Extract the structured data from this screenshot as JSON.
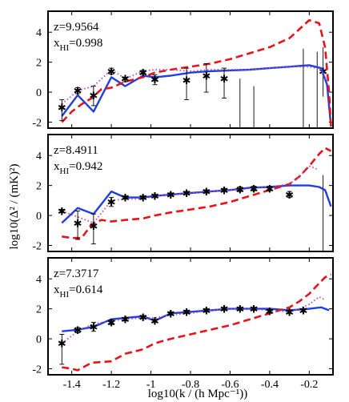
{
  "figure": {
    "ylabel": "log10(Δ² / (mK)²)",
    "xlabel": "log10(k / (h Mpc⁻¹))"
  },
  "chart_data": [
    {
      "type": "line",
      "panel": "top",
      "annotation": {
        "z": "z=9.9564",
        "xhi": "x",
        "xhi_sub": "HI",
        "xhi_val": "=0.998"
      },
      "xlim": [
        -1.52,
        -0.08
      ],
      "ylim": [
        -2.4,
        5.4
      ],
      "yticks": [
        -2,
        0,
        2,
        4
      ],
      "xticks": [
        -1.4,
        -1.2,
        -1,
        -0.8,
        -0.6,
        -0.4,
        -0.2
      ],
      "series": [
        {
          "style": "blue-solid",
          "color": "#1f3fe0",
          "x": [
            -1.45,
            -1.37,
            -1.29,
            -1.2,
            -1.13,
            -1.04,
            -0.98,
            -0.9,
            -0.8,
            -0.7,
            -0.6,
            -0.5,
            -0.4,
            -0.3,
            -0.2,
            -0.14,
            -0.11,
            -0.09
          ],
          "y": [
            -1.6,
            -0.2,
            -1.3,
            1.0,
            0.4,
            1.1,
            1.0,
            1.1,
            1.3,
            1.4,
            1.45,
            1.5,
            1.6,
            1.7,
            1.8,
            1.6,
            0.5,
            -2.3
          ]
        },
        {
          "style": "red-dashed",
          "color": "#e8121b",
          "x": [
            -1.45,
            -1.4,
            -1.35,
            -1.3,
            -1.25,
            -1.2,
            -1.13,
            -1.04,
            -0.98,
            -0.9,
            -0.8,
            -0.7,
            -0.6,
            -0.5,
            -0.4,
            -0.3,
            -0.25,
            -0.2,
            -0.15,
            -0.12,
            -0.1,
            -0.09
          ],
          "y": [
            -2.0,
            -1.3,
            -0.8,
            -0.4,
            0.2,
            0.3,
            0.7,
            1.0,
            1.3,
            1.5,
            1.7,
            1.9,
            2.2,
            2.6,
            3.0,
            3.6,
            4.2,
            4.8,
            4.6,
            3.0,
            0.0,
            -2.3
          ]
        },
        {
          "style": "magenta-dotted",
          "color": "#b04ab0",
          "x": [
            -1.45,
            -1.37,
            -1.29,
            -1.2,
            -1.13,
            -1.04,
            -0.98,
            -0.9,
            -0.8,
            -0.7,
            -0.6,
            -0.5,
            -0.4,
            -0.3,
            -0.2,
            -0.14,
            -0.11
          ],
          "y": [
            -0.8,
            0.1,
            0.4,
            1.5,
            0.9,
            1.4,
            1.5,
            1.5,
            1.4,
            1.5,
            1.5,
            1.5,
            1.6,
            1.7,
            1.7,
            1.5,
            0.7
          ]
        }
      ],
      "points": [
        {
          "x": -1.45,
          "y": -1.0,
          "lo": -1.9,
          "hi": -0.5
        },
        {
          "x": -1.37,
          "y": 0.1,
          "lo": -0.1,
          "hi": 0.3
        },
        {
          "x": -1.29,
          "y": -0.2,
          "lo": -0.9,
          "hi": 0.4
        },
        {
          "x": -1.2,
          "y": 1.4,
          "lo": 1.2,
          "hi": 1.6
        },
        {
          "x": -1.13,
          "y": 0.9,
          "lo": 0.7,
          "hi": 1.0
        },
        {
          "x": -1.04,
          "y": 1.3,
          "lo": 1.2,
          "hi": 1.45
        },
        {
          "x": -0.98,
          "y": 0.85,
          "lo": 0.5,
          "hi": 1.15
        },
        {
          "x": -0.82,
          "y": 0.8,
          "lo": -0.5,
          "hi": 1.6
        },
        {
          "x": -0.72,
          "y": 1.1,
          "lo": 0.0,
          "hi": 1.9
        },
        {
          "x": -0.63,
          "y": 0.9,
          "lo": -0.4,
          "hi": 1.6
        }
      ],
      "bars": [
        {
          "x": -0.55,
          "lo": -2.4,
          "hi": 0.9
        },
        {
          "x": -0.48,
          "lo": -2.4,
          "hi": 0.4
        },
        {
          "x": -0.23,
          "lo": -2.4,
          "hi": 2.9
        },
        {
          "x": -0.16,
          "lo": -2.4,
          "hi": 2.7
        },
        {
          "x": -0.13,
          "lo": -0.3,
          "hi": 3.0,
          "marker": 1.4
        }
      ]
    },
    {
      "type": "line",
      "panel": "middle",
      "annotation": {
        "z": "z=8.4911",
        "xhi": "x",
        "xhi_sub": "HI",
        "xhi_val": "=0.942"
      },
      "xlim": [
        -1.52,
        -0.08
      ],
      "ylim": [
        -2.4,
        5.4
      ],
      "yticks": [
        -2,
        0,
        2,
        4
      ],
      "xticks": [
        -1.4,
        -1.2,
        -1,
        -0.8,
        -0.6,
        -0.4,
        -0.2
      ],
      "series": [
        {
          "style": "blue-solid",
          "color": "#1f3fe0",
          "x": [
            -1.45,
            -1.37,
            -1.29,
            -1.2,
            -1.13,
            -1.04,
            -0.98,
            -0.9,
            -0.8,
            -0.7,
            -0.6,
            -0.5,
            -0.4,
            -0.3,
            -0.2,
            -0.15,
            -0.12,
            -0.09
          ],
          "y": [
            -0.5,
            0.5,
            0.1,
            1.6,
            1.2,
            1.2,
            1.3,
            1.4,
            1.5,
            1.6,
            1.7,
            1.85,
            1.9,
            2.0,
            2.0,
            1.9,
            1.7,
            0.6
          ]
        },
        {
          "style": "red-dashed",
          "color": "#e8121b",
          "x": [
            -1.45,
            -1.4,
            -1.35,
            -1.3,
            -1.25,
            -1.2,
            -1.13,
            -1.04,
            -0.98,
            -0.9,
            -0.8,
            -0.7,
            -0.6,
            -0.5,
            -0.4,
            -0.3,
            -0.25,
            -0.2,
            -0.15,
            -0.12,
            -0.09
          ],
          "y": [
            -1.4,
            -1.5,
            -1.5,
            -0.6,
            -0.3,
            -0.4,
            -0.3,
            -0.2,
            0.0,
            0.2,
            0.4,
            0.6,
            0.9,
            1.3,
            1.7,
            2.1,
            2.6,
            3.3,
            4.1,
            4.5,
            4.3
          ]
        },
        {
          "style": "magenta-dotted",
          "color": "#b04ab0",
          "x": [
            -1.45,
            -1.37,
            -1.29,
            -1.2,
            -1.13,
            -1.04,
            -0.98,
            -0.9,
            -0.8,
            -0.7,
            -0.6,
            -0.5,
            -0.4,
            -0.3,
            -0.25,
            -0.2,
            -0.16
          ],
          "y": [
            0.3,
            -0.1,
            -0.5,
            1.0,
            1.1,
            1.1,
            1.3,
            1.4,
            1.5,
            1.6,
            1.7,
            1.8,
            1.9,
            2.1,
            2.6,
            3.3,
            3.1
          ]
        }
      ],
      "points": [
        {
          "x": -1.45,
          "y": 0.3,
          "lo": 0.2,
          "hi": 0.4
        },
        {
          "x": -1.37,
          "y": -0.5,
          "lo": -1.6,
          "hi": 0.3
        },
        {
          "x": -1.29,
          "y": -0.7,
          "lo": -1.9,
          "hi": 0.1
        },
        {
          "x": -1.2,
          "y": 0.9,
          "lo": 0.6,
          "hi": 1.2
        },
        {
          "x": -1.13,
          "y": 1.2,
          "lo": 1.1,
          "hi": 1.3
        },
        {
          "x": -1.04,
          "y": 1.2,
          "lo": 1.15,
          "hi": 1.3
        },
        {
          "x": -0.98,
          "y": 1.3,
          "lo": 1.2,
          "hi": 1.4
        },
        {
          "x": -0.9,
          "y": 1.4,
          "lo": 1.3,
          "hi": 1.5
        },
        {
          "x": -0.82,
          "y": 1.5,
          "lo": 1.4,
          "hi": 1.6
        },
        {
          "x": -0.72,
          "y": 1.6,
          "lo": 1.5,
          "hi": 1.7
        },
        {
          "x": -0.63,
          "y": 1.7,
          "lo": 1.6,
          "hi": 1.8
        },
        {
          "x": -0.55,
          "y": 1.75,
          "lo": 1.6,
          "hi": 1.9
        },
        {
          "x": -0.48,
          "y": 1.8,
          "lo": 1.65,
          "hi": 1.95
        },
        {
          "x": -0.4,
          "y": 1.8,
          "lo": 1.65,
          "hi": 1.95
        },
        {
          "x": -0.3,
          "y": 1.4,
          "lo": 1.2,
          "hi": 1.6
        }
      ],
      "bars": [
        {
          "x": -0.13,
          "lo": -2.4,
          "hi": 2.7
        }
      ]
    },
    {
      "type": "line",
      "panel": "bottom",
      "annotation": {
        "z": "z=7.3717",
        "xhi": "x",
        "xhi_sub": "HI",
        "xhi_val": "=0.614"
      },
      "xlim": [
        -1.52,
        -0.08
      ],
      "ylim": [
        -2.4,
        5.4
      ],
      "yticks": [
        -2,
        0,
        2,
        4
      ],
      "xticks": [
        -1.4,
        -1.2,
        -1,
        -0.8,
        -0.6,
        -0.4,
        -0.2
      ],
      "xticklabels": [
        "-1.4",
        "-1.2",
        "-1",
        "-0.8",
        "-0.6",
        "-0.4",
        "-0.2"
      ],
      "series": [
        {
          "style": "blue-solid",
          "color": "#1f3fe0",
          "x": [
            -1.45,
            -1.37,
            -1.29,
            -1.2,
            -1.13,
            -1.04,
            -0.98,
            -0.9,
            -0.8,
            -0.7,
            -0.6,
            -0.5,
            -0.4,
            -0.3,
            -0.2,
            -0.14,
            -0.1
          ],
          "y": [
            0.5,
            0.6,
            0.8,
            1.3,
            1.4,
            1.5,
            1.2,
            1.7,
            1.8,
            1.9,
            2.0,
            2.0,
            2.0,
            1.9,
            2.0,
            2.1,
            1.9
          ]
        },
        {
          "style": "red-dashed",
          "color": "#e8121b",
          "x": [
            -1.45,
            -1.4,
            -1.37,
            -1.3,
            -1.2,
            -1.13,
            -1.04,
            -0.98,
            -0.9,
            -0.8,
            -0.7,
            -0.6,
            -0.5,
            -0.4,
            -0.3,
            -0.25,
            -0.2,
            -0.15,
            -0.12,
            -0.09
          ],
          "y": [
            -1.9,
            -2.0,
            -2.1,
            -1.6,
            -1.5,
            -1.0,
            -0.7,
            -0.3,
            0.0,
            0.3,
            0.6,
            0.9,
            1.3,
            1.7,
            2.1,
            2.5,
            3.0,
            3.7,
            4.1,
            4.3
          ]
        },
        {
          "style": "magenta-dotted",
          "color": "#b04ab0",
          "x": [
            -1.45,
            -1.37,
            -1.29,
            -1.2,
            -1.13,
            -1.04,
            -0.98,
            -0.9,
            -0.8,
            -0.7,
            -0.6,
            -0.5,
            -0.4,
            -0.3,
            -0.25,
            -0.2,
            -0.15,
            -0.12
          ],
          "y": [
            -0.3,
            0.5,
            1.0,
            1.2,
            1.3,
            1.4,
            1.4,
            1.6,
            1.7,
            1.9,
            2.0,
            2.0,
            1.9,
            1.8,
            2.0,
            2.3,
            2.8,
            2.6
          ]
        }
      ],
      "points": [
        {
          "x": -1.45,
          "y": -0.3,
          "lo": -1.7,
          "hi": 0.3
        },
        {
          "x": -1.37,
          "y": 0.6,
          "lo": 0.4,
          "hi": 0.75
        },
        {
          "x": -1.29,
          "y": 0.8,
          "lo": 0.5,
          "hi": 1.1
        },
        {
          "x": -1.2,
          "y": 1.1,
          "lo": 0.95,
          "hi": 1.25
        },
        {
          "x": -1.13,
          "y": 1.3,
          "lo": 1.2,
          "hi": 1.4
        },
        {
          "x": -1.04,
          "y": 1.45,
          "lo": 1.35,
          "hi": 1.55
        },
        {
          "x": -0.98,
          "y": 1.2,
          "lo": 1.1,
          "hi": 1.3
        },
        {
          "x": -0.9,
          "y": 1.7,
          "lo": 1.6,
          "hi": 1.8
        },
        {
          "x": -0.82,
          "y": 1.8,
          "lo": 1.7,
          "hi": 1.9
        },
        {
          "x": -0.72,
          "y": 1.9,
          "lo": 1.8,
          "hi": 2.0
        },
        {
          "x": -0.63,
          "y": 2.0,
          "lo": 1.9,
          "hi": 2.1
        },
        {
          "x": -0.55,
          "y": 2.0,
          "lo": 1.9,
          "hi": 2.1
        },
        {
          "x": -0.48,
          "y": 2.0,
          "lo": 1.9,
          "hi": 2.1
        },
        {
          "x": -0.4,
          "y": 1.85,
          "lo": 1.75,
          "hi": 1.95
        },
        {
          "x": -0.3,
          "y": 1.8,
          "lo": 1.7,
          "hi": 1.9
        },
        {
          "x": -0.23,
          "y": 1.9,
          "lo": 1.8,
          "hi": 2.0
        }
      ],
      "bars": []
    }
  ]
}
